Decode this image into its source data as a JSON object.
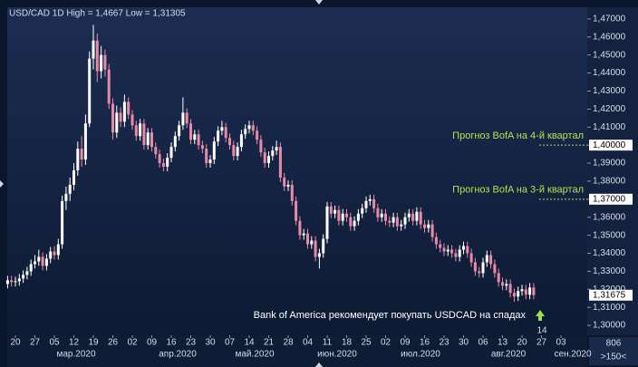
{
  "chart_data": {
    "type": "candlestick",
    "title": "USD/CAD 1D High = 1,4667 Low = 1,31305",
    "categories": [
      null,
      null,
      "20",
      null,
      null,
      null,
      null,
      "27",
      null,
      null,
      null,
      null,
      "05",
      null,
      null,
      null,
      null,
      "12",
      null,
      null,
      null,
      null,
      "19",
      null,
      null,
      null,
      null,
      "26",
      null,
      null,
      null,
      null,
      "02",
      null,
      null,
      null,
      null,
      "09",
      null,
      null,
      null,
      null,
      "16",
      null,
      null,
      null,
      null,
      "23",
      null,
      null,
      null,
      null,
      "30",
      null,
      null,
      null,
      null,
      "07",
      null,
      null,
      null,
      null,
      "14",
      null,
      null,
      null,
      null,
      "21",
      null,
      null,
      null,
      null,
      "28",
      null,
      null,
      null,
      null,
      "04",
      null,
      null,
      null,
      null,
      "11",
      null,
      null,
      null,
      null,
      "18",
      null,
      null,
      null,
      null,
      "25",
      null,
      null,
      null,
      null,
      "02",
      null,
      null,
      null,
      null,
      "09",
      null,
      null,
      null,
      null,
      "16",
      null,
      null,
      null,
      null,
      "23",
      null,
      null,
      null,
      null,
      "30",
      null,
      null,
      null,
      null,
      "06",
      null,
      null,
      null,
      null,
      "13",
      null,
      null,
      null,
      null,
      "20",
      null,
      null,
      null,
      null,
      "27",
      null,
      null,
      null,
      null,
      "03"
    ],
    "months": [
      "мар.2020",
      "апр.2020",
      "май.2020",
      "июн.2020",
      "июл.2020",
      "авг.2020",
      "сен.2020"
    ],
    "open": [
      1.323,
      1.325,
      1.324,
      1.3245,
      1.326,
      1.328,
      1.33,
      1.334,
      1.3355,
      1.338,
      1.333,
      1.337,
      1.341,
      1.339,
      1.345,
      1.369,
      1.373,
      1.378,
      1.386,
      1.398,
      1.392,
      1.412,
      1.448,
      1.458,
      1.441,
      1.45,
      1.442,
      1.423,
      1.407,
      1.418,
      1.413,
      1.424,
      1.417,
      1.411,
      1.405,
      1.412,
      1.4,
      1.407,
      1.399,
      1.395,
      1.39,
      1.388,
      1.393,
      1.399,
      1.405,
      1.411,
      1.418,
      1.412,
      1.403,
      1.406,
      1.4,
      1.398,
      1.39,
      1.392,
      1.402,
      1.408,
      1.41,
      1.404,
      1.4,
      1.394,
      1.399,
      1.406,
      1.409,
      1.411,
      1.408,
      1.403,
      1.396,
      1.39,
      1.394,
      1.397,
      1.399,
      1.382,
      1.377,
      1.378,
      1.369,
      1.358,
      1.35,
      1.351,
      1.345,
      1.347,
      1.338,
      1.34,
      1.348,
      1.366,
      1.362,
      1.364,
      1.358,
      1.362,
      1.36,
      1.355,
      1.358,
      1.362,
      1.365,
      1.369,
      1.37,
      1.365,
      1.36,
      1.362,
      1.358,
      1.357,
      1.36,
      1.355,
      1.356,
      1.36,
      1.362,
      1.358,
      1.363,
      1.356,
      1.354,
      1.356,
      1.349,
      1.345,
      1.343,
      1.341,
      1.342,
      1.34,
      1.338,
      1.342,
      1.344,
      1.34,
      1.335,
      1.33,
      1.329,
      1.335,
      1.339,
      1.334,
      1.329,
      1.324,
      1.322,
      1.323,
      1.318,
      1.316,
      1.319,
      1.32,
      1.317,
      1.321,
      null,
      null,
      null,
      null,
      null,
      null,
      null
    ],
    "high": [
      1.3275,
      1.3275,
      1.327,
      1.3285,
      1.3305,
      1.3325,
      1.3365,
      1.339,
      1.342,
      1.3405,
      1.3395,
      1.3435,
      1.344,
      1.348,
      1.372,
      1.377,
      1.382,
      1.39,
      1.402,
      1.405,
      1.417,
      1.452,
      1.4667,
      1.462,
      1.455,
      1.453,
      1.445,
      1.426,
      1.422,
      1.421,
      1.428,
      1.4265,
      1.4195,
      1.4135,
      1.4145,
      1.4145,
      1.4095,
      1.4095,
      1.4015,
      1.3975,
      1.3925,
      1.3955,
      1.4015,
      1.4075,
      1.4135,
      1.4265,
      1.4205,
      1.4145,
      1.4085,
      1.4085,
      1.4025,
      1.4005,
      1.3945,
      1.4045,
      1.4105,
      1.4135,
      1.4125,
      1.4065,
      1.4025,
      1.4015,
      1.4085,
      1.4115,
      1.4135,
      1.4135,
      1.4105,
      1.4055,
      1.3985,
      1.3965,
      1.3995,
      1.4025,
      1.4015,
      1.3845,
      1.3805,
      1.3805,
      1.3715,
      1.3605,
      1.3535,
      1.3535,
      1.3495,
      1.3495,
      1.3425,
      1.3505,
      1.3685,
      1.3685,
      1.3665,
      1.3665,
      1.3645,
      1.3645,
      1.3625,
      1.3605,
      1.3645,
      1.3675,
      1.3715,
      1.3725,
      1.3725,
      1.3675,
      1.3645,
      1.3645,
      1.3605,
      1.3625,
      1.3625,
      1.3585,
      1.3625,
      1.3645,
      1.3645,
      1.3655,
      1.3655,
      1.3585,
      1.3585,
      1.3585,
      1.3515,
      1.3475,
      1.3455,
      1.3445,
      1.3445,
      1.3425,
      1.3445,
      1.3465,
      1.3465,
      1.3425,
      1.3375,
      1.3325,
      1.3375,
      1.3415,
      1.3415,
      1.3365,
      1.3315,
      1.3265,
      1.3255,
      1.3255,
      1.3205,
      1.3215,
      1.3225,
      1.3225,
      1.3235,
      1.3235,
      null,
      null,
      null,
      null,
      null,
      null,
      null
    ],
    "low": [
      1.3205,
      1.3215,
      1.3215,
      1.322,
      1.3235,
      1.3255,
      1.3275,
      1.3315,
      1.333,
      1.3305,
      1.3305,
      1.3345,
      1.3365,
      1.3365,
      1.3425,
      1.364,
      1.369,
      1.375,
      1.383,
      1.388,
      1.389,
      1.41,
      1.442,
      1.435,
      1.437,
      1.438,
      1.42,
      1.403,
      1.404,
      1.41,
      1.41,
      1.4145,
      1.4085,
      1.4025,
      1.4025,
      1.3975,
      1.3975,
      1.3965,
      1.3925,
      1.3875,
      1.3855,
      1.3855,
      1.3905,
      1.3965,
      1.4025,
      1.4085,
      1.4095,
      1.4005,
      1.4005,
      1.3975,
      1.3955,
      1.3875,
      1.3875,
      1.3895,
      1.3995,
      1.4055,
      1.4015,
      1.3975,
      1.3915,
      1.3915,
      1.3965,
      1.4035,
      1.4065,
      1.4055,
      1.4005,
      1.3935,
      1.3875,
      1.3875,
      1.3915,
      1.3945,
      1.3795,
      1.3745,
      1.3745,
      1.3665,
      1.3555,
      1.3475,
      1.3475,
      1.3425,
      1.3425,
      1.3355,
      1.3315,
      1.3375,
      1.3455,
      1.3595,
      1.3595,
      1.3555,
      1.3555,
      1.3575,
      1.3525,
      1.3525,
      1.3555,
      1.3595,
      1.3625,
      1.3665,
      1.3625,
      1.3575,
      1.3575,
      1.3555,
      1.3545,
      1.3545,
      1.3525,
      1.3525,
      1.3535,
      1.3575,
      1.3555,
      1.3555,
      1.3535,
      1.3515,
      1.3515,
      1.3465,
      1.3425,
      1.3405,
      1.3385,
      1.3385,
      1.3375,
      1.3355,
      1.3355,
      1.3395,
      1.3375,
      1.3325,
      1.3275,
      1.3265,
      1.3265,
      1.3325,
      1.3315,
      1.3265,
      1.3215,
      1.3195,
      1.3195,
      1.3155,
      1.31305,
      1.3135,
      1.3165,
      1.3145,
      1.3145,
      1.3145,
      null,
      null,
      null,
      null,
      null,
      null,
      null
    ],
    "close": [
      1.325,
      1.324,
      1.3245,
      1.326,
      1.328,
      1.33,
      1.334,
      1.3355,
      1.338,
      1.333,
      1.337,
      1.341,
      1.339,
      1.345,
      1.369,
      1.373,
      1.378,
      1.386,
      1.398,
      1.392,
      1.412,
      1.448,
      1.458,
      1.441,
      1.45,
      1.442,
      1.423,
      1.407,
      1.418,
      1.413,
      1.424,
      1.417,
      1.411,
      1.405,
      1.412,
      1.4,
      1.407,
      1.399,
      1.395,
      1.39,
      1.388,
      1.393,
      1.399,
      1.405,
      1.411,
      1.418,
      1.412,
      1.403,
      1.406,
      1.4,
      1.398,
      1.39,
      1.392,
      1.402,
      1.408,
      1.41,
      1.404,
      1.4,
      1.394,
      1.399,
      1.406,
      1.409,
      1.411,
      1.408,
      1.403,
      1.396,
      1.39,
      1.394,
      1.397,
      1.399,
      1.382,
      1.377,
      1.378,
      1.369,
      1.358,
      1.35,
      1.351,
      1.345,
      1.347,
      1.338,
      1.34,
      1.348,
      1.366,
      1.362,
      1.364,
      1.358,
      1.362,
      1.36,
      1.355,
      1.358,
      1.362,
      1.365,
      1.369,
      1.37,
      1.365,
      1.36,
      1.362,
      1.358,
      1.357,
      1.36,
      1.355,
      1.356,
      1.36,
      1.362,
      1.358,
      1.363,
      1.356,
      1.354,
      1.356,
      1.349,
      1.345,
      1.343,
      1.341,
      1.342,
      1.34,
      1.338,
      1.342,
      1.344,
      1.34,
      1.335,
      1.33,
      1.329,
      1.335,
      1.339,
      1.334,
      1.329,
      1.324,
      1.322,
      1.323,
      1.318,
      1.316,
      1.319,
      1.32,
      1.317,
      1.321,
      1.31675,
      null,
      null,
      null,
      null,
      null,
      null,
      null
    ],
    "up_color": "#ffffff",
    "down_color": "#e98aa8",
    "ylim": [
      1.2945,
      1.4765
    ],
    "yticks": [
      {
        "value": 1.47,
        "label": "1,47000"
      },
      {
        "value": 1.46,
        "label": "1,46000"
      },
      {
        "value": 1.45,
        "label": "1,45000"
      },
      {
        "value": 1.44,
        "label": "1,44000"
      },
      {
        "value": 1.43,
        "label": "1,43000"
      },
      {
        "value": 1.42,
        "label": "1,42000"
      },
      {
        "value": 1.41,
        "label": "1,41000"
      },
      {
        "value": 1.4,
        "label": "1,40000"
      },
      {
        "value": 1.39,
        "label": "1,39000"
      },
      {
        "value": 1.38,
        "label": "1,38000"
      },
      {
        "value": 1.37,
        "label": "1,37000"
      },
      {
        "value": 1.36,
        "label": "1,36000"
      },
      {
        "value": 1.35,
        "label": "1,35000"
      },
      {
        "value": 1.34,
        "label": "1,34000"
      },
      {
        "value": 1.33,
        "label": "1,33000"
      },
      {
        "value": 1.32,
        "label": "1,32000"
      },
      {
        "value": 1.31,
        "label": "1,31000"
      },
      {
        "value": 1.3,
        "label": "1,30000"
      }
    ],
    "levels": [
      {
        "value": 1.4,
        "label": "1,40000",
        "annotation": "Прогноз  BofA на 4-й квартал"
      },
      {
        "value": 1.37,
        "label": "1,37000",
        "annotation": "Прогноз  BofA на 3-й квартал"
      }
    ],
    "level_color": "#b8e04a",
    "last_price": {
      "value": 1.31675,
      "label": "1,31675"
    },
    "annotation": "Bank of America рекомендует покупать USDCAD на спадах",
    "arrow_label": "14",
    "corner_labels": [
      "806",
      ">150<"
    ]
  }
}
